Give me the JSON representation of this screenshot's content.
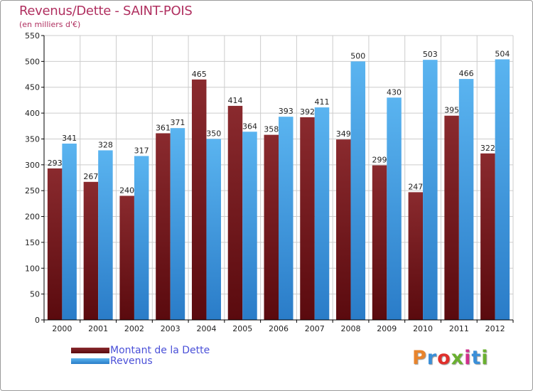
{
  "header": {
    "title": "Revenus/Dette - SAINT-POIS",
    "subtitle": "(en milliers d'€)"
  },
  "logo": {
    "text": "Proxiti",
    "colors": [
      "#e8842c",
      "#3a8fd8",
      "#e0302c",
      "#6ab030",
      "#d0308c",
      "#3a8fd8",
      "#6ab030"
    ]
  },
  "colors": {
    "dette": "#7a1a1e",
    "revenus": "#4aa8e8",
    "grid": "#cccccc",
    "axis": "#000000"
  },
  "chart_data": {
    "type": "bar",
    "title": "Revenus/Dette - SAINT-POIS",
    "subtitle": "(en milliers d'€)",
    "categories": [
      "2000",
      "2001",
      "2002",
      "2003",
      "2004",
      "2005",
      "2006",
      "2007",
      "2008",
      "2009",
      "2010",
      "2011",
      "2012"
    ],
    "series": [
      {
        "name": "Montant de la Dette",
        "values": [
          293,
          267,
          240,
          361,
          465,
          414,
          358,
          392,
          349,
          299,
          247,
          395,
          322
        ]
      },
      {
        "name": "Revenus",
        "values": [
          341,
          328,
          317,
          371,
          350,
          364,
          393,
          411,
          500,
          430,
          503,
          466,
          504
        ]
      }
    ],
    "ylim": [
      0,
      550
    ],
    "yticks": [
      0,
      50,
      100,
      150,
      200,
      250,
      300,
      350,
      400,
      450,
      500,
      550
    ],
    "grid": true,
    "legend": "bottom-left",
    "data_labels": true
  }
}
